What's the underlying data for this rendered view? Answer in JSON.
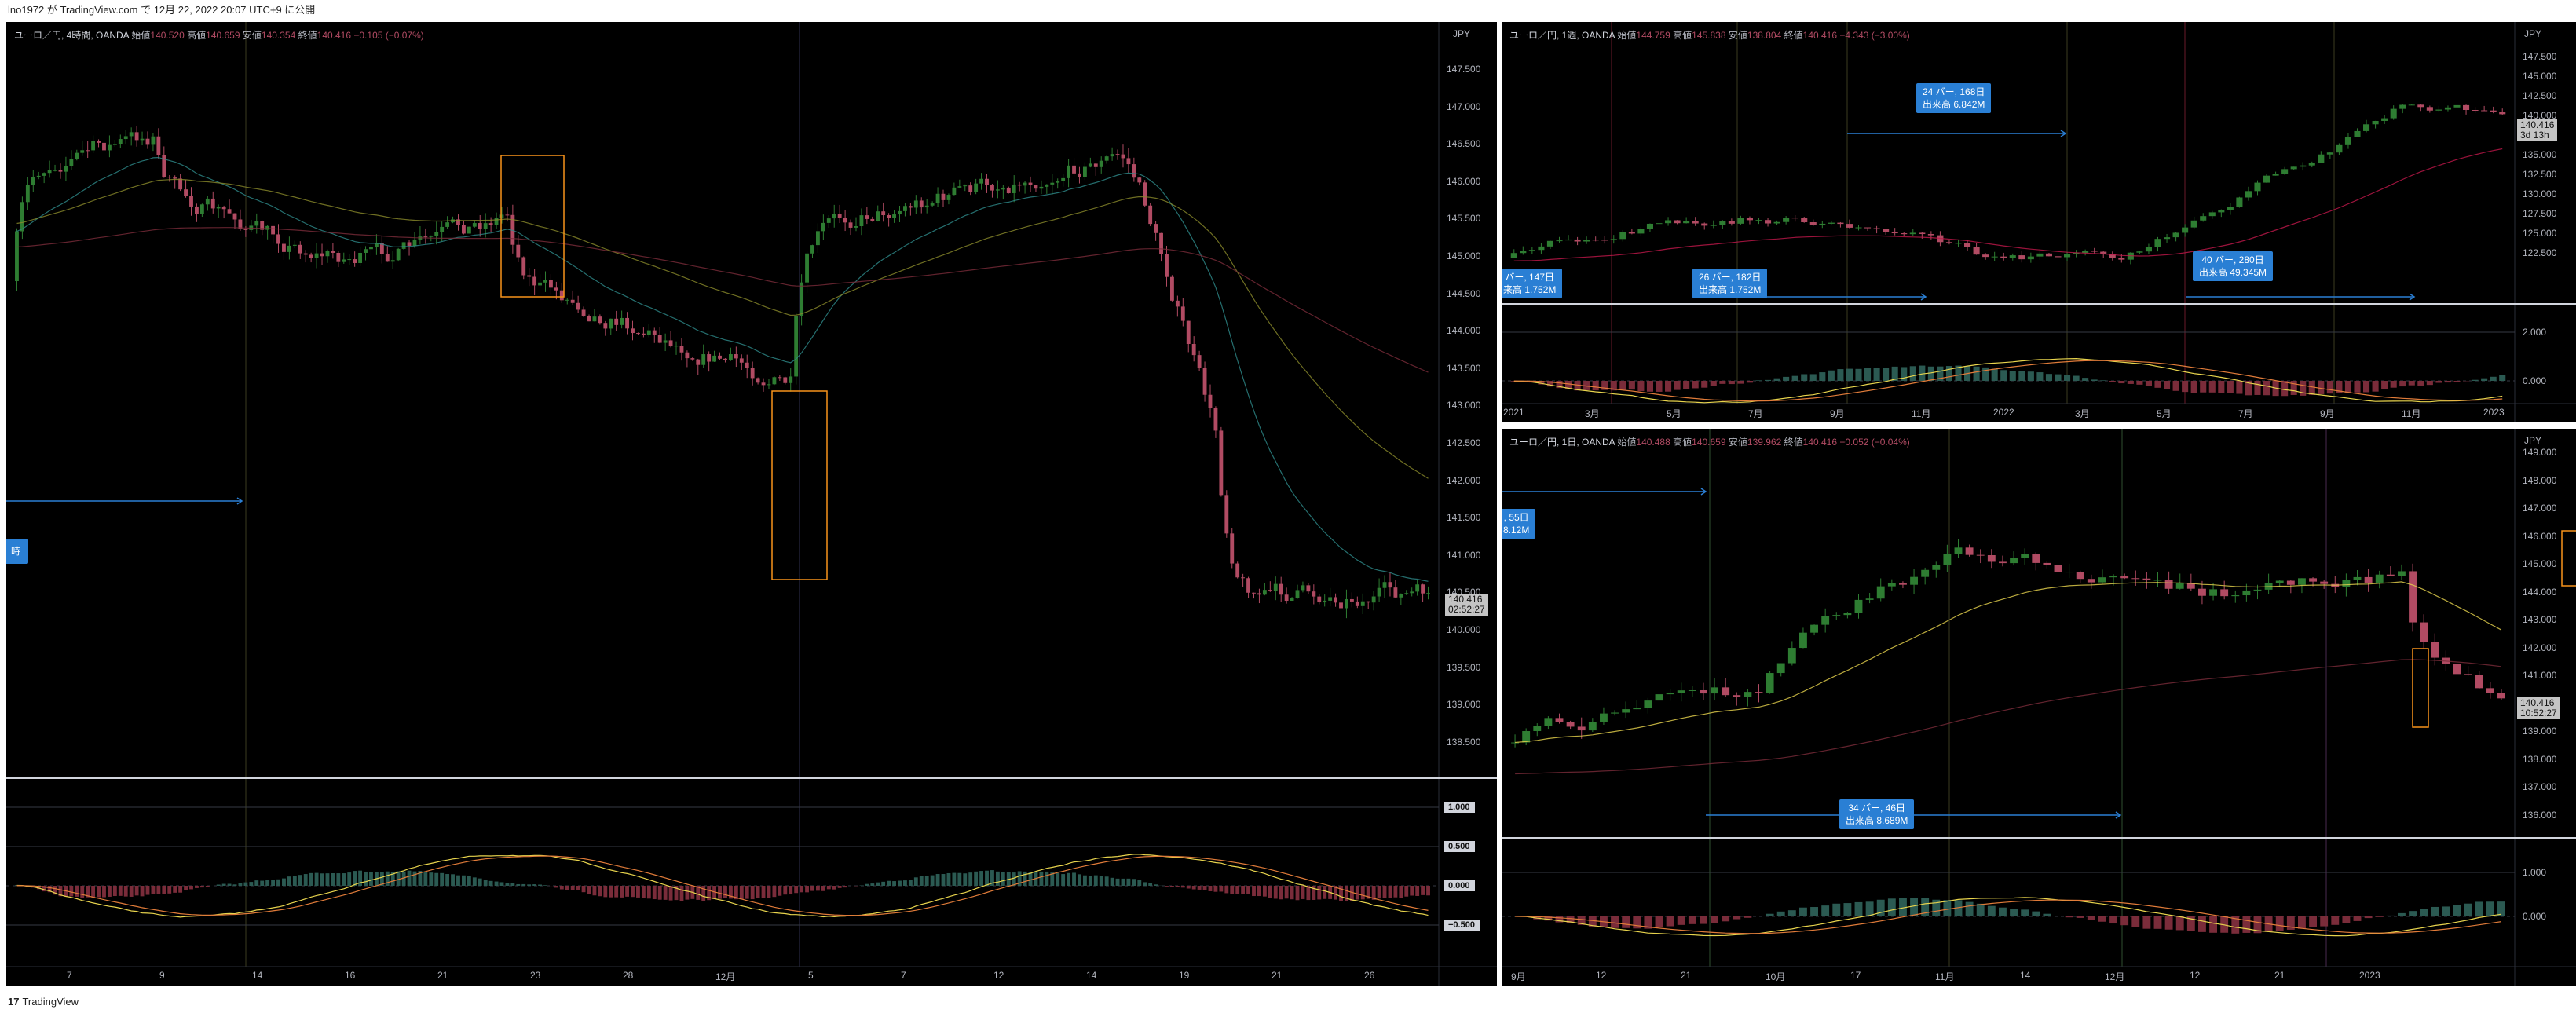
{
  "header": {
    "text": "lno1972 が TradingView.com で 12月 22, 2022 20:07 UTC+9 に公開"
  },
  "footer": {
    "logo": "17",
    "brand": "TradingView"
  },
  "colors": {
    "bg": "#000000",
    "up": "#2e7d32",
    "down": "#b14b63",
    "callout": "#2a7fd4",
    "box": "#f7931a"
  },
  "left": {
    "legend": {
      "title": "ユーロ／円, 4時間, OANDA",
      "o_label": "始値",
      "o": "140.520",
      "h_label": "高値",
      "h": "140.659",
      "l_label": "安値",
      "l": "140.354",
      "c_label": "終値",
      "c": "140.416",
      "chg": "−0.105 (−0.07%)"
    },
    "currency": "JPY",
    "yticks": [
      "147.500",
      "147.000",
      "146.500",
      "146.000",
      "145.500",
      "145.000",
      "144.500",
      "144.000",
      "143.500",
      "143.000",
      "142.500",
      "142.000",
      "141.500",
      "141.000",
      "140.500",
      "140.000",
      "139.500",
      "139.000",
      "138.500"
    ],
    "price_tag": [
      "140.416",
      "02:52:27"
    ],
    "osc_ticks": [
      "1.000",
      "0.500",
      "0.000",
      "−0.500"
    ],
    "xticks": [
      "7",
      "9",
      "14",
      "16",
      "21",
      "23",
      "28",
      "12月",
      "5",
      "7",
      "12",
      "14",
      "19",
      "21",
      "26"
    ],
    "callout_edge": "時"
  },
  "right_top": {
    "legend": {
      "title": "ユーロ／円, 1週, OANDA",
      "o_label": "始値",
      "o": "144.759",
      "h_label": "高値",
      "h": "145.838",
      "l_label": "安値",
      "l": "138.804",
      "c_label": "終値",
      "c": "140.416",
      "chg": "−4.343 (−3.00%)"
    },
    "currency": "JPY",
    "yticks": [
      "147.500",
      "145.000",
      "142.500",
      "140.000",
      "137.500",
      "135.000",
      "132.500",
      "130.000",
      "127.500",
      "125.000",
      "122.500"
    ],
    "price_tag": [
      "140.416",
      "3d 13h"
    ],
    "osc_ticks": [
      "2.000",
      "0.000"
    ],
    "xticks": [
      "2021",
      "3月",
      "5月",
      "7月",
      "9月",
      "11月",
      "2022",
      "3月",
      "5月",
      "7月",
      "9月",
      "11月",
      "2023"
    ],
    "callouts": [
      {
        "line1": "24 バー, 168日",
        "line2": "出来高 6.842M"
      },
      {
        "line1": "バー, 147日",
        "line2": "来高 1.752M"
      },
      {
        "line1": "26 バー, 182日",
        "line2": "出来高 1.752M"
      },
      {
        "line1": "40 バー, 280日",
        "line2": "出来高 49.345M"
      }
    ]
  },
  "right_bottom": {
    "legend": {
      "title": "ユーロ／円, 1日, OANDA",
      "o_label": "始値",
      "o": "140.488",
      "h_label": "高値",
      "h": "140.659",
      "l_label": "安値",
      "l": "139.962",
      "c_label": "終値",
      "c": "140.416",
      "chg": "−0.052 (−0.04%)"
    },
    "currency": "JPY",
    "yticks": [
      "149.000",
      "148.000",
      "147.000",
      "146.000",
      "145.000",
      "144.000",
      "143.000",
      "142.000",
      "141.000",
      "140.000",
      "139.000",
      "138.000",
      "137.000",
      "136.000"
    ],
    "price_tag": [
      "140.416",
      "10:52:27"
    ],
    "osc_ticks": [
      "1.000",
      "0.000"
    ],
    "xticks": [
      "9月",
      "12",
      "21",
      "10月",
      "17",
      "11月",
      "14",
      "12月",
      "12",
      "21",
      "2023"
    ],
    "callouts": [
      {
        "line1": ", 55日",
        "line2": "8.12M"
      },
      {
        "line1": "34 バー, 46日",
        "line2": "出来高 8.689M"
      }
    ]
  }
}
